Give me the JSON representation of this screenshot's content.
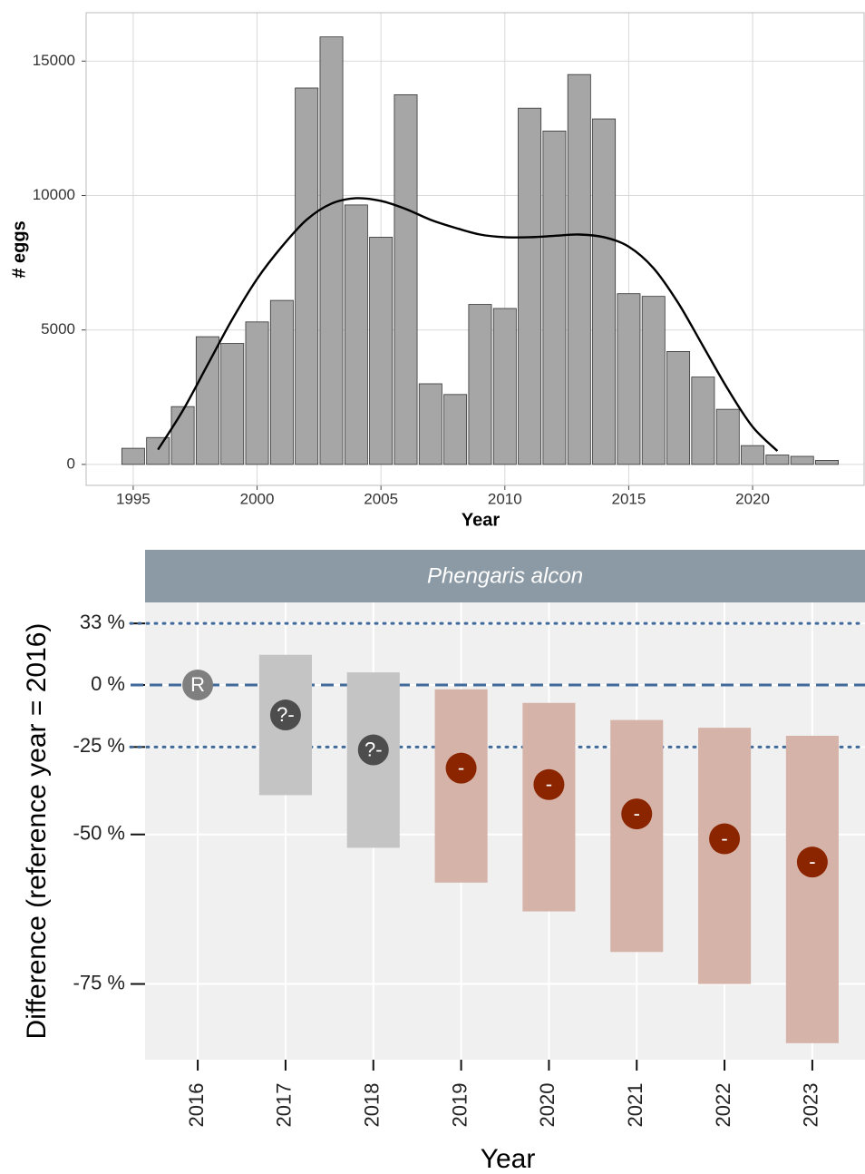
{
  "chart_data": [
    {
      "type": "bar",
      "x_label": "Year",
      "y_label": "# eggs",
      "x": [
        1995,
        1996,
        1997,
        1998,
        1999,
        2000,
        2001,
        2002,
        2003,
        2004,
        2005,
        2006,
        2007,
        2008,
        2009,
        2010,
        2011,
        2012,
        2013,
        2014,
        2015,
        2016,
        2017,
        2018,
        2019,
        2020,
        2021,
        2022,
        2023
      ],
      "values": [
        600,
        1000,
        2150,
        4750,
        4500,
        5300,
        6100,
        14000,
        15900,
        9650,
        8450,
        13750,
        3000,
        2600,
        5950,
        5800,
        13250,
        12400,
        14500,
        12850,
        6350,
        6250,
        4200,
        3250,
        2050,
        700,
        350,
        300,
        150
      ],
      "color": "#a6a6a6",
      "smooth": {
        "color": "#000000",
        "x": [
          1996,
          1997,
          1998,
          1999,
          2000,
          2001,
          2002,
          2003,
          2004,
          2005,
          2006,
          2007,
          2008,
          2009,
          2010,
          2011,
          2012,
          2013,
          2014,
          2015,
          2016,
          2017,
          2018,
          2019,
          2020,
          2021
        ],
        "values": [
          550,
          2000,
          3700,
          5400,
          6900,
          8100,
          9100,
          9700,
          9900,
          9800,
          9500,
          9100,
          8800,
          8550,
          8450,
          8450,
          8500,
          8550,
          8450,
          8100,
          7300,
          6000,
          4400,
          2800,
          1400,
          500
        ]
      },
      "xlim": [
        1993.1,
        2024.5
      ],
      "ylim": [
        -780,
        16800
      ],
      "xticks": [
        1995,
        2000,
        2005,
        2010,
        2015,
        2020
      ],
      "yticks": [
        0,
        5000,
        10000,
        15000
      ],
      "grid": true
    },
    {
      "type": "interval",
      "facet": "Phengaris alcon",
      "x_label": "Year",
      "y_label": "Difference (reference year = 2016)",
      "yscale": "log",
      "categories": [
        "2016",
        "2017",
        "2018",
        "2019",
        "2020",
        "2021",
        "2022",
        "2023"
      ],
      "values": [
        0,
        -13,
        -26,
        -32,
        -37,
        -45,
        -51,
        -56
      ],
      "lower": [
        null,
        -40,
        -53,
        -60,
        -65,
        -71,
        -75,
        -81
      ],
      "upper": [
        null,
        15,
        6,
        -2,
        -8,
        -15,
        -18,
        -21
      ],
      "labels": [
        "R",
        "?-",
        "?-",
        "-",
        "-",
        "-",
        "-",
        "-"
      ],
      "point_colors": [
        "#7f7f7f",
        "#4d4d4d",
        "#4d4d4d",
        "#8b2500",
        "#8b2500",
        "#8b2500",
        "#8b2500",
        "#8b2500"
      ],
      "box_colors": [
        null,
        "#c4c4c4",
        "#c4c4c4",
        "#d6b3a8",
        "#d6b3a8",
        "#d6b3a8",
        "#d6b3a8",
        "#d6b3a8"
      ],
      "ylim": [
        -82.4,
        46.6
      ],
      "yticks": [
        {
          "value": 33,
          "label": "33 %"
        },
        {
          "value": 0,
          "label": "0 %"
        },
        {
          "value": -25,
          "label": "-25 %"
        },
        {
          "value": -50,
          "label": "-50 %"
        },
        {
          "value": -75,
          "label": "-75 %"
        }
      ],
      "hlines": [
        {
          "value": 33,
          "style": "dotted"
        },
        {
          "value": 0,
          "style": "dashed"
        },
        {
          "value": -25,
          "style": "dotted"
        }
      ],
      "hline_color": "#3f6a9a",
      "grid": true
    }
  ]
}
